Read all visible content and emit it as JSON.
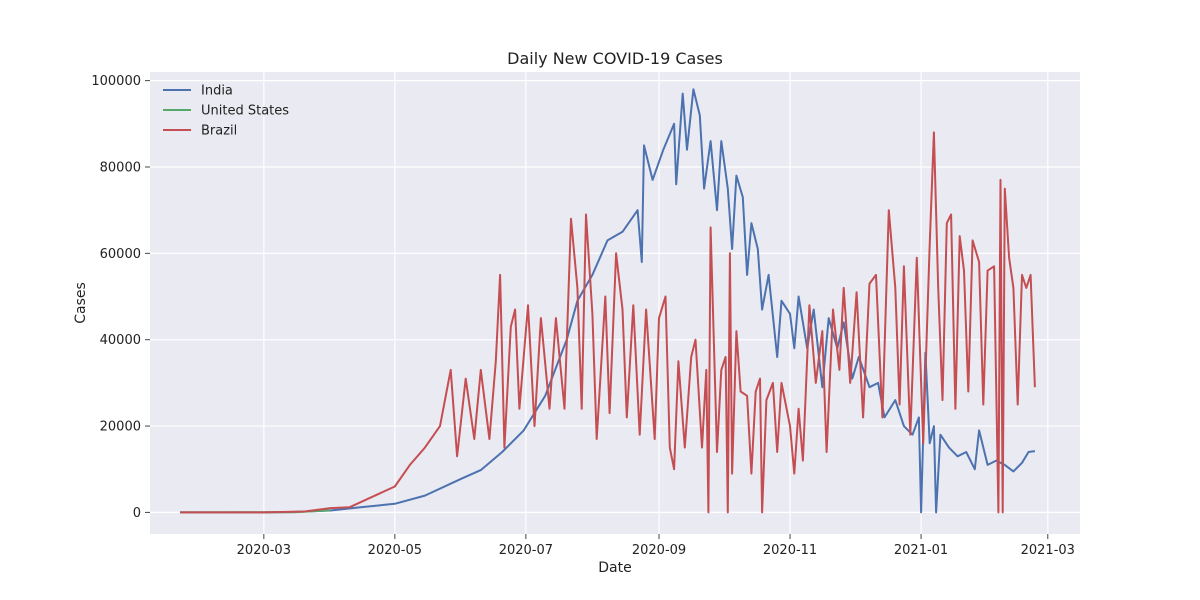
{
  "chart_data": {
    "type": "line",
    "title": "Daily New COVID-19 Cases",
    "xlabel": "Date",
    "ylabel": "Cases",
    "xlim": [
      "2020-01-08",
      "2021-03-16"
    ],
    "ylim": [
      -5000,
      102000
    ],
    "x_ticks": [
      "2020-03-01",
      "2020-05-01",
      "2020-07-01",
      "2020-09-01",
      "2020-11-01",
      "2021-01-01",
      "2021-03-01"
    ],
    "x_tick_labels": [
      "2020-03",
      "2020-05",
      "2020-07",
      "2020-09",
      "2020-11",
      "2021-01",
      "2021-03"
    ],
    "y_ticks": [
      0,
      20000,
      40000,
      60000,
      80000,
      100000
    ],
    "y_tick_labels": [
      "0",
      "20000",
      "40000",
      "60000",
      "80000",
      "100000"
    ],
    "grid": true,
    "legend": "top-left",
    "series": [
      {
        "name": "India",
        "color": "#4c72b0",
        "points": [
          [
            "2020-01-22",
            0
          ],
          [
            "2020-03-01",
            0
          ],
          [
            "2020-03-15",
            100
          ],
          [
            "2020-04-01",
            450
          ],
          [
            "2020-04-15",
            1200
          ],
          [
            "2020-05-01",
            2000
          ],
          [
            "2020-05-15",
            3900
          ],
          [
            "2020-06-01",
            7800
          ],
          [
            "2020-06-10",
            9800
          ],
          [
            "2020-06-20",
            14000
          ],
          [
            "2020-06-30",
            19000
          ],
          [
            "2020-07-10",
            27000
          ],
          [
            "2020-07-20",
            40000
          ],
          [
            "2020-07-25",
            49000
          ],
          [
            "2020-08-01",
            55000
          ],
          [
            "2020-08-08",
            63000
          ],
          [
            "2020-08-15",
            65000
          ],
          [
            "2020-08-22",
            70000
          ],
          [
            "2020-08-24",
            58000
          ],
          [
            "2020-08-25",
            85000
          ],
          [
            "2020-08-29",
            77000
          ],
          [
            "2020-09-03",
            84000
          ],
          [
            "2020-09-08",
            90000
          ],
          [
            "2020-09-09",
            76000
          ],
          [
            "2020-09-12",
            97000
          ],
          [
            "2020-09-14",
            84000
          ],
          [
            "2020-09-17",
            98000
          ],
          [
            "2020-09-20",
            92000
          ],
          [
            "2020-09-22",
            75000
          ],
          [
            "2020-09-25",
            86000
          ],
          [
            "2020-09-28",
            70000
          ],
          [
            "2020-09-30",
            86000
          ],
          [
            "2020-10-03",
            75000
          ],
          [
            "2020-10-05",
            61000
          ],
          [
            "2020-10-07",
            78000
          ],
          [
            "2020-10-10",
            73000
          ],
          [
            "2020-10-12",
            55000
          ],
          [
            "2020-10-14",
            67000
          ],
          [
            "2020-10-17",
            61000
          ],
          [
            "2020-10-19",
            47000
          ],
          [
            "2020-10-22",
            55000
          ],
          [
            "2020-10-26",
            36000
          ],
          [
            "2020-10-28",
            49000
          ],
          [
            "2020-11-01",
            46000
          ],
          [
            "2020-11-03",
            38000
          ],
          [
            "2020-11-05",
            50000
          ],
          [
            "2020-11-09",
            38000
          ],
          [
            "2020-11-12",
            47000
          ],
          [
            "2020-11-16",
            29000
          ],
          [
            "2020-11-19",
            45000
          ],
          [
            "2020-11-23",
            38000
          ],
          [
            "2020-11-26",
            44000
          ],
          [
            "2020-11-30",
            31000
          ],
          [
            "2020-12-03",
            36000
          ],
          [
            "2020-12-08",
            29000
          ],
          [
            "2020-12-12",
            30000
          ],
          [
            "2020-12-15",
            22000
          ],
          [
            "2020-12-20",
            26000
          ],
          [
            "2020-12-24",
            20000
          ],
          [
            "2020-12-28",
            18000
          ],
          [
            "2020-12-31",
            22000
          ],
          [
            "2021-01-01",
            0
          ],
          [
            "2021-01-03",
            37000
          ],
          [
            "2021-01-05",
            16000
          ],
          [
            "2021-01-07",
            20000
          ],
          [
            "2021-01-08",
            0
          ],
          [
            "2021-01-10",
            18000
          ],
          [
            "2021-01-14",
            15000
          ],
          [
            "2021-01-18",
            13000
          ],
          [
            "2021-01-22",
            14000
          ],
          [
            "2021-01-26",
            10000
          ],
          [
            "2021-01-28",
            19000
          ],
          [
            "2021-02-01",
            11000
          ],
          [
            "2021-02-05",
            12000
          ],
          [
            "2021-02-09",
            11000
          ],
          [
            "2021-02-13",
            9500
          ],
          [
            "2021-02-17",
            11500
          ],
          [
            "2021-02-20",
            14000
          ],
          [
            "2021-02-23",
            14200
          ]
        ]
      },
      {
        "name": "United States",
        "color": "#55a868",
        "points": [
          [
            "2020-01-22",
            0
          ],
          [
            "2020-03-15",
            50
          ],
          [
            "2020-03-25",
            300
          ],
          [
            "2020-04-01",
            500
          ]
        ]
      },
      {
        "name": "Brazil",
        "color": "#c44e52",
        "points": [
          [
            "2020-01-22",
            0
          ],
          [
            "2020-03-01",
            0
          ],
          [
            "2020-03-20",
            200
          ],
          [
            "2020-04-01",
            1000
          ],
          [
            "2020-04-10",
            1200
          ],
          [
            "2020-04-20",
            3500
          ],
          [
            "2020-05-01",
            6000
          ],
          [
            "2020-05-08",
            11000
          ],
          [
            "2020-05-15",
            15000
          ],
          [
            "2020-05-22",
            20000
          ],
          [
            "2020-05-27",
            33000
          ],
          [
            "2020-05-30",
            13000
          ],
          [
            "2020-06-03",
            31000
          ],
          [
            "2020-06-07",
            17000
          ],
          [
            "2020-06-10",
            33000
          ],
          [
            "2020-06-14",
            17000
          ],
          [
            "2020-06-17",
            35000
          ],
          [
            "2020-06-19",
            55000
          ],
          [
            "2020-06-21",
            15000
          ],
          [
            "2020-06-24",
            43000
          ],
          [
            "2020-06-26",
            47000
          ],
          [
            "2020-06-28",
            24000
          ],
          [
            "2020-07-02",
            48000
          ],
          [
            "2020-07-05",
            20000
          ],
          [
            "2020-07-08",
            45000
          ],
          [
            "2020-07-12",
            24000
          ],
          [
            "2020-07-15",
            45000
          ],
          [
            "2020-07-19",
            24000
          ],
          [
            "2020-07-22",
            68000
          ],
          [
            "2020-07-25",
            52000
          ],
          [
            "2020-07-27",
            24000
          ],
          [
            "2020-07-29",
            69000
          ],
          [
            "2020-08-01",
            46000
          ],
          [
            "2020-08-03",
            17000
          ],
          [
            "2020-08-07",
            50000
          ],
          [
            "2020-08-09",
            23000
          ],
          [
            "2020-08-12",
            60000
          ],
          [
            "2020-08-15",
            47000
          ],
          [
            "2020-08-17",
            22000
          ],
          [
            "2020-08-20",
            48000
          ],
          [
            "2020-08-23",
            18000
          ],
          [
            "2020-08-26",
            47000
          ],
          [
            "2020-08-30",
            17000
          ],
          [
            "2020-09-01",
            45000
          ],
          [
            "2020-09-04",
            50000
          ],
          [
            "2020-09-06",
            15000
          ],
          [
            "2020-09-08",
            10000
          ],
          [
            "2020-09-10",
            35000
          ],
          [
            "2020-09-13",
            15000
          ],
          [
            "2020-09-16",
            36000
          ],
          [
            "2020-09-18",
            40000
          ],
          [
            "2020-09-21",
            15000
          ],
          [
            "2020-09-23",
            33000
          ],
          [
            "2020-09-24",
            0
          ],
          [
            "2020-09-25",
            66000
          ],
          [
            "2020-09-28",
            14000
          ],
          [
            "2020-09-30",
            33000
          ],
          [
            "2020-10-02",
            36000
          ],
          [
            "2020-10-03",
            0
          ],
          [
            "2020-10-04",
            60000
          ],
          [
            "2020-10-05",
            9000
          ],
          [
            "2020-10-07",
            42000
          ],
          [
            "2020-10-09",
            28000
          ],
          [
            "2020-10-12",
            27000
          ],
          [
            "2020-10-14",
            9000
          ],
          [
            "2020-10-16",
            28000
          ],
          [
            "2020-10-18",
            31000
          ],
          [
            "2020-10-19",
            0
          ],
          [
            "2020-10-21",
            26000
          ],
          [
            "2020-10-24",
            30000
          ],
          [
            "2020-10-26",
            14000
          ],
          [
            "2020-10-28",
            30000
          ],
          [
            "2020-11-01",
            20000
          ],
          [
            "2020-11-03",
            9000
          ],
          [
            "2020-11-05",
            24000
          ],
          [
            "2020-11-07",
            12000
          ],
          [
            "2020-11-10",
            48000
          ],
          [
            "2020-11-13",
            30000
          ],
          [
            "2020-11-16",
            42000
          ],
          [
            "2020-11-18",
            14000
          ],
          [
            "2020-11-21",
            47000
          ],
          [
            "2020-11-24",
            33000
          ],
          [
            "2020-11-26",
            52000
          ],
          [
            "2020-11-29",
            30000
          ],
          [
            "2020-12-02",
            51000
          ],
          [
            "2020-12-05",
            22000
          ],
          [
            "2020-12-08",
            53000
          ],
          [
            "2020-12-11",
            55000
          ],
          [
            "2020-12-14",
            22000
          ],
          [
            "2020-12-17",
            70000
          ],
          [
            "2020-12-20",
            52000
          ],
          [
            "2020-12-22",
            25000
          ],
          [
            "2020-12-24",
            57000
          ],
          [
            "2020-12-27",
            18000
          ],
          [
            "2020-12-30",
            59000
          ],
          [
            "2021-01-02",
            16000
          ],
          [
            "2021-01-05",
            62000
          ],
          [
            "2021-01-07",
            88000
          ],
          [
            "2021-01-09",
            52000
          ],
          [
            "2021-01-11",
            26000
          ],
          [
            "2021-01-13",
            67000
          ],
          [
            "2021-01-15",
            69000
          ],
          [
            "2021-01-17",
            24000
          ],
          [
            "2021-01-19",
            64000
          ],
          [
            "2021-01-21",
            56000
          ],
          [
            "2021-01-23",
            28000
          ],
          [
            "2021-01-25",
            63000
          ],
          [
            "2021-01-28",
            58000
          ],
          [
            "2021-01-30",
            25000
          ],
          [
            "2021-02-01",
            56000
          ],
          [
            "2021-02-04",
            57000
          ],
          [
            "2021-02-06",
            0
          ],
          [
            "2021-02-07",
            77000
          ],
          [
            "2021-02-08",
            0
          ],
          [
            "2021-02-09",
            75000
          ],
          [
            "2021-02-11",
            59000
          ],
          [
            "2021-02-13",
            52000
          ],
          [
            "2021-02-15",
            25000
          ],
          [
            "2021-02-17",
            55000
          ],
          [
            "2021-02-19",
            52000
          ],
          [
            "2021-02-21",
            55000
          ],
          [
            "2021-02-23",
            29000
          ]
        ]
      }
    ]
  }
}
